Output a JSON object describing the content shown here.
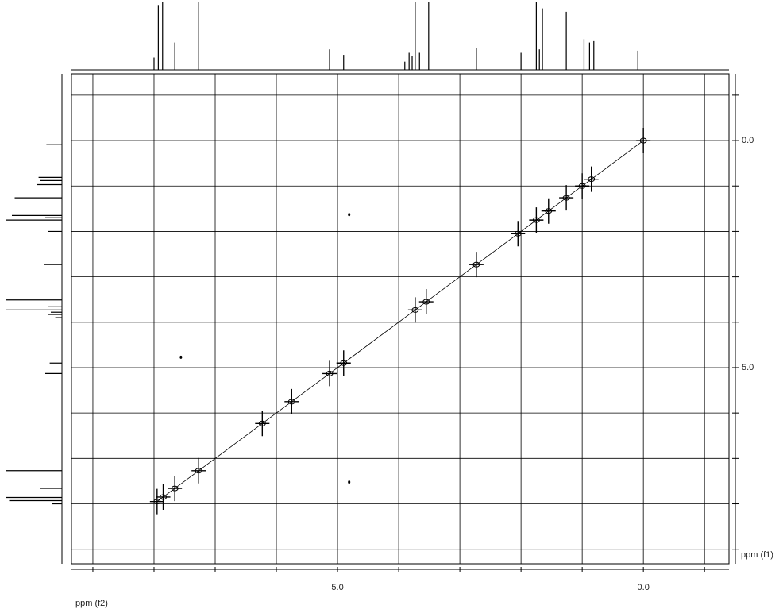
{
  "chart_data": {
    "type": "cosy",
    "x_label": "ppm (f2)",
    "y_label": "ppm (f1)",
    "xlim": [
      9.35,
      -1.4
    ],
    "ylim": [
      -1.47,
      9.32
    ],
    "xticks": [
      {
        "value": 5,
        "label": "5.0"
      },
      {
        "value": 0,
        "label": "0.0"
      }
    ],
    "yticks": [
      {
        "value": 0,
        "label": "0.0"
      },
      {
        "value": 5,
        "label": "5.0"
      }
    ],
    "xgrid": [
      9,
      8,
      7,
      6,
      5,
      4,
      3,
      2,
      1,
      0,
      -1
    ],
    "ygrid": [
      -1,
      0,
      1,
      2,
      3,
      4,
      5,
      6,
      7,
      8,
      9
    ],
    "grid": true,
    "color": "#000000",
    "projection": {
      "ppm": [
        8.0,
        7.93,
        7.86,
        7.66,
        7.27,
        5.13,
        4.9,
        3.9,
        3.83,
        3.78,
        3.73,
        3.66,
        3.51,
        2.73,
        2.0,
        1.75,
        1.7,
        1.65,
        1.26,
        0.97,
        0.88,
        0.81,
        0.09
      ],
      "intensity": [
        18,
        95,
        100,
        40,
        100,
        30,
        22,
        12,
        25,
        20,
        100,
        25,
        100,
        32,
        25,
        100,
        30,
        90,
        85,
        45,
        40,
        42,
        28
      ]
    },
    "diagonal_peaks": [
      7.95,
      7.85,
      7.66,
      7.27,
      6.23,
      5.75,
      5.13,
      4.9,
      3.73,
      3.55,
      2.73,
      2.05,
      1.75,
      1.55,
      1.26,
      1.0,
      0.85,
      0.0
    ],
    "cross_peaks": {
      "x": [
        4.81,
        4.81,
        7.56
      ],
      "y": [
        1.63,
        7.52,
        4.77
      ]
    }
  }
}
